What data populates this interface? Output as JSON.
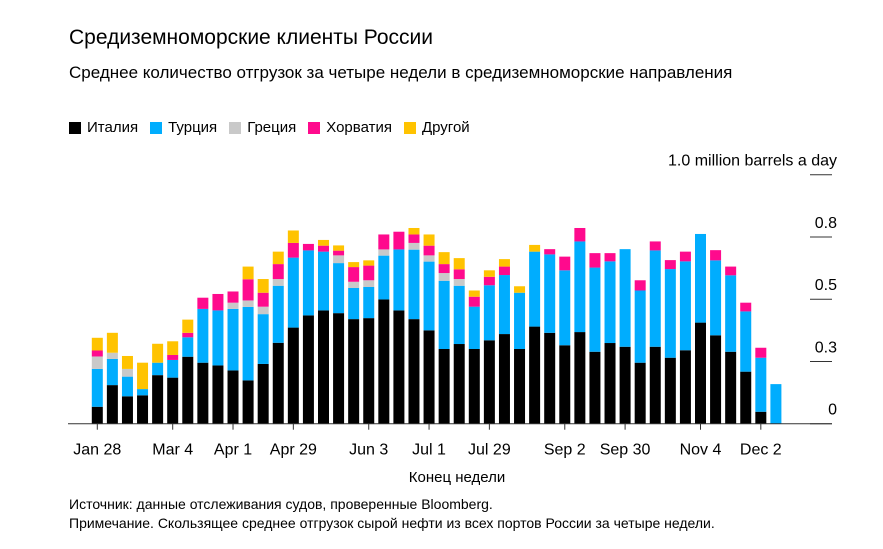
{
  "title": "Средиземноморские клиенты России",
  "subtitle": "Среднее количество отгрузок за четыре недели в средиземноморские направления",
  "footer": {
    "source": "Источник: данные отслеживания судов, проверенные Bloomberg.",
    "note": "Примечание. Скользящее среднее отгрузок сырой нефти из всех портов России за четыре недели."
  },
  "chart_data": {
    "type": "bar",
    "stacked": true,
    "title": "Средиземноморские клиенты России",
    "xlabel": "Конец недели",
    "ylabel": "1.0 million barrels a day",
    "ylim": [
      0,
      1.0
    ],
    "y_ticks": [
      0,
      0.25,
      0.5,
      0.75,
      1.0
    ],
    "y_tick_labels": [
      "0",
      "0.3",
      "0.5",
      "0.8",
      "1.0 million barrels a day"
    ],
    "grid": false,
    "legend": "top-left",
    "x_tick_labels": [
      "Jan 28",
      "Mar 4",
      "Apr 1",
      "Apr 29",
      "Jun 3",
      "Jul 1",
      "Jul 29",
      "Sep 2",
      "Sep 30",
      "Nov 4",
      "Dec 2"
    ],
    "categories": [
      "Jan 28",
      "Feb 4",
      "Feb 11",
      "Feb 18",
      "Feb 25",
      "Mar 4",
      "Mar 11",
      "Mar 18",
      "Mar 25",
      "Apr 1",
      "Apr 8",
      "Apr 15",
      "Apr 22",
      "Apr 29",
      "May 6",
      "May 13",
      "May 20",
      "May 27",
      "Jun 3",
      "Jun 10",
      "Jun 17",
      "Jun 24",
      "Jul 1",
      "Jul 8",
      "Jul 15",
      "Jul 22",
      "Jul 29",
      "Aug 5",
      "Aug 12",
      "Aug 19",
      "Aug 26",
      "Sep 2",
      "Sep 9",
      "Sep 16",
      "Sep 23",
      "Sep 30",
      "Oct 7",
      "Oct 14",
      "Oct 21",
      "Oct 28",
      "Nov 4",
      "Nov 11",
      "Nov 18",
      "Nov 25",
      "Dec 2",
      "Dec 9"
    ],
    "series": [
      {
        "name": "Италия",
        "color": "#000000",
        "values": [
          0.068,
          0.155,
          0.11,
          0.114,
          0.195,
          0.185,
          0.269,
          0.245,
          0.234,
          0.214,
          0.174,
          0.24,
          0.325,
          0.386,
          0.435,
          0.455,
          0.444,
          0.42,
          0.424,
          0.499,
          0.455,
          0.42,
          0.375,
          0.3,
          0.32,
          0.3,
          0.335,
          0.36,
          0.3,
          0.39,
          0.365,
          0.315,
          0.368,
          0.289,
          0.324,
          0.309,
          0.245,
          0.309,
          0.265,
          0.295,
          0.406,
          0.355,
          0.289,
          0.209,
          0.048,
          0
        ]
      },
      {
        "name": "Турция",
        "color": "#00adfe",
        "values": [
          0.152,
          0.105,
          0.079,
          0.025,
          0.05,
          0.071,
          0.078,
          0.216,
          0.221,
          0.247,
          0.295,
          0.2,
          0.229,
          0.281,
          0.261,
          0.236,
          0.201,
          0.125,
          0.125,
          0.176,
          0.245,
          0.279,
          0.276,
          0.274,
          0.234,
          0.17,
          0.221,
          0.237,
          0.226,
          0.301,
          0.315,
          0.301,
          0.364,
          0.338,
          0.328,
          0.392,
          0.29,
          0.387,
          0.356,
          0.357,
          0.356,
          0.301,
          0.307,
          0.242,
          0.217,
          0.159
        ]
      },
      {
        "name": "Греция",
        "color": "#c9c9c9",
        "values": [
          0.05,
          0.025,
          0.031,
          0,
          0,
          0,
          0,
          0,
          0,
          0.025,
          0.026,
          0.03,
          0.027,
          0,
          0,
          0,
          0.031,
          0.025,
          0.027,
          0.025,
          0,
          0.027,
          0.025,
          0.031,
          0.027,
          0,
          0,
          0,
          0,
          0,
          0,
          0,
          0,
          0,
          0,
          0,
          0,
          0,
          0,
          0,
          0,
          0,
          0,
          0,
          0,
          0
        ]
      },
      {
        "name": "Хорватия",
        "color": "#ff0a8d",
        "values": [
          0.024,
          0,
          0,
          0,
          0,
          0.02,
          0.018,
          0.045,
          0.066,
          0.045,
          0.085,
          0.056,
          0.06,
          0.059,
          0.026,
          0.024,
          0.019,
          0.059,
          0.059,
          0.06,
          0.071,
          0.034,
          0.039,
          0.036,
          0.039,
          0.04,
          0.034,
          0.034,
          0,
          0,
          0.021,
          0.055,
          0.054,
          0.058,
          0.033,
          0,
          0.041,
          0.036,
          0.036,
          0.039,
          0,
          0.041,
          0.035,
          0.035,
          0.04,
          0
        ]
      },
      {
        "name": "Другой",
        "color": "#ffc300",
        "values": [
          0.051,
          0.08,
          0.052,
          0.106,
          0.076,
          0.055,
          0.053,
          0,
          0,
          0,
          0.051,
          0.055,
          0.05,
          0.05,
          0,
          0.023,
          0.021,
          0.02,
          0.021,
          0,
          0,
          0.026,
          0.045,
          0.048,
          0.045,
          0.025,
          0.026,
          0.03,
          0.026,
          0.027,
          0,
          0,
          0,
          0,
          0,
          0,
          0,
          0,
          0,
          0,
          0,
          0,
          0,
          0,
          0,
          0
        ]
      }
    ]
  }
}
